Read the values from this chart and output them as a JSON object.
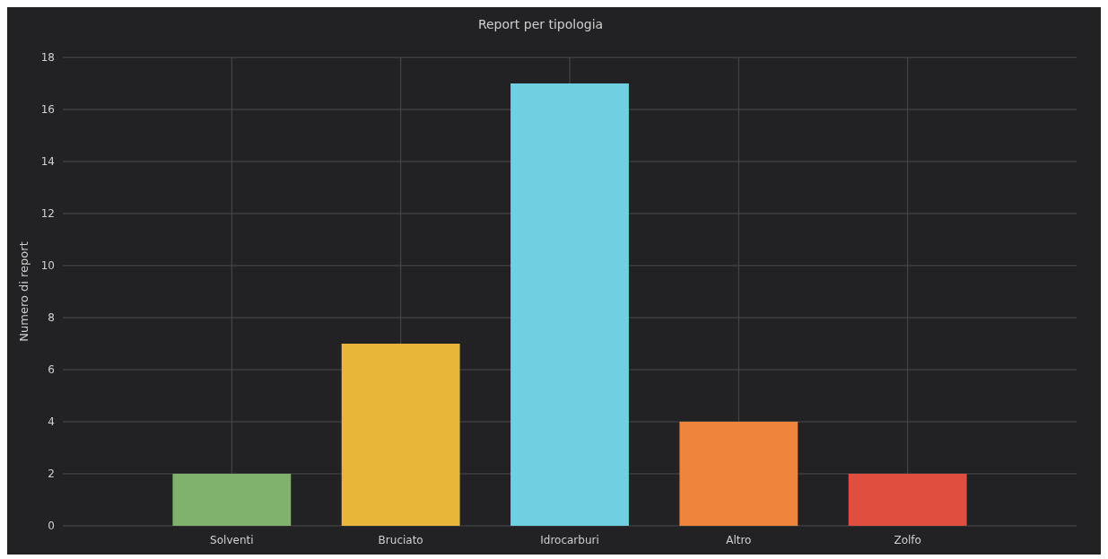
{
  "chart_data": {
    "type": "bar",
    "title": "Report per tipologia",
    "ylabel": "Numero di report",
    "categories": [
      "Solventi",
      "Bruciato",
      "Idrocarburi",
      "Altro",
      "Zolfo"
    ],
    "values": [
      2,
      7,
      17,
      4,
      2
    ],
    "colors": [
      "#80b26d",
      "#e8b73a",
      "#70d0e1",
      "#ef843d",
      "#e04e40"
    ],
    "ylim": [
      0,
      18
    ],
    "yticks": [
      0,
      2,
      4,
      6,
      8,
      10,
      12,
      14,
      16,
      18
    ],
    "grid": true
  }
}
